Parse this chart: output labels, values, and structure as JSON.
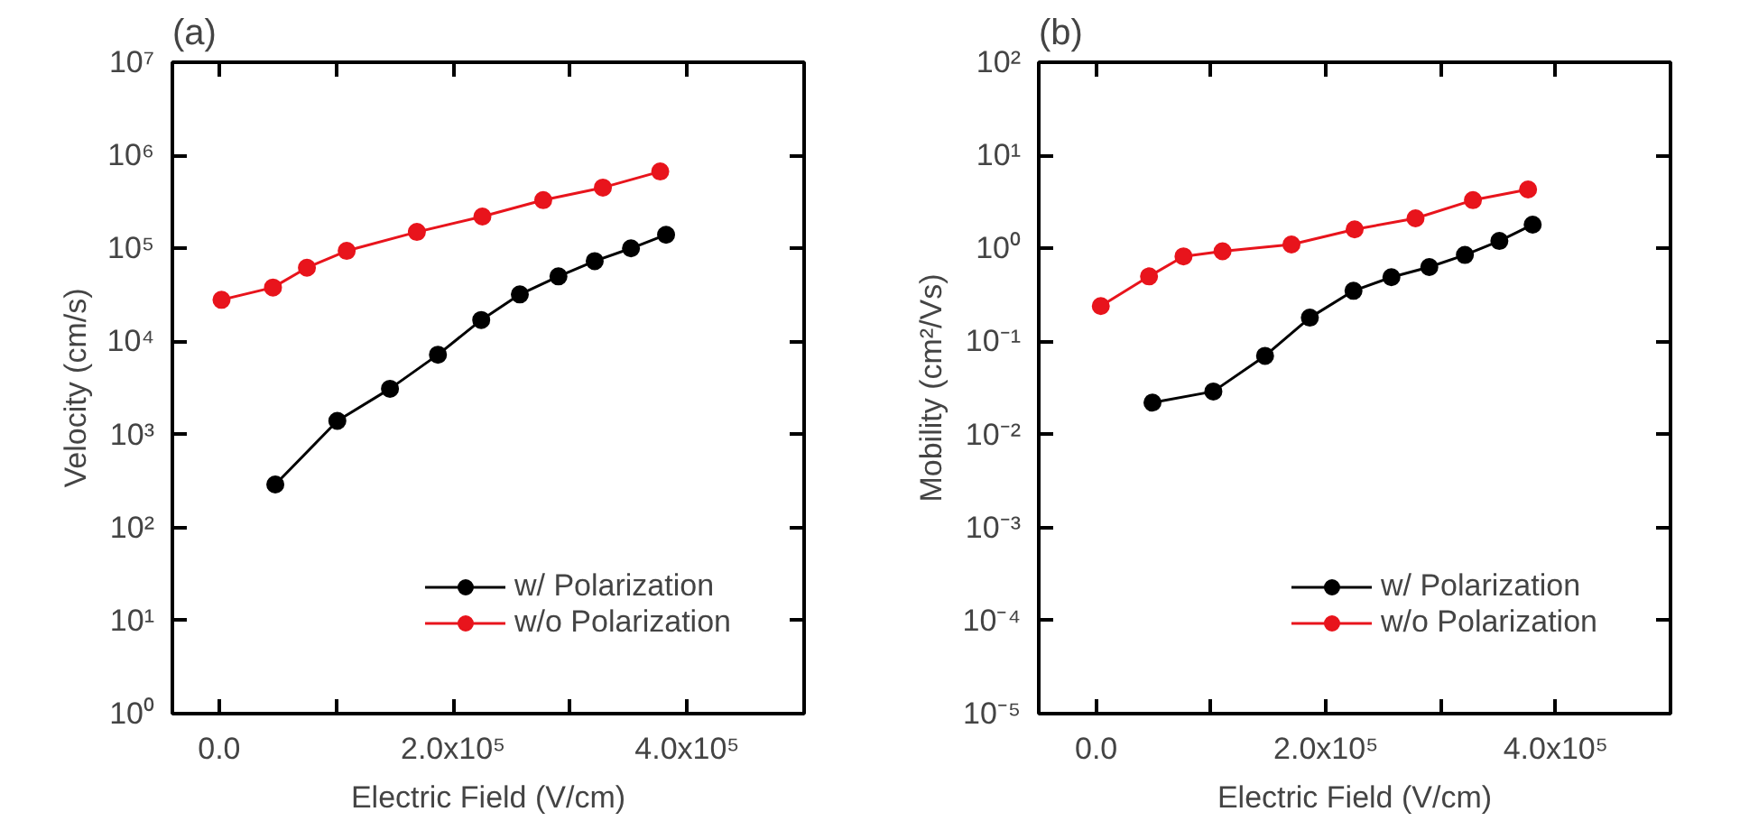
{
  "chart_data": [
    {
      "type": "line",
      "title": "(a)",
      "xlabel": "Electric Field (V/cm)",
      "ylabel": "Velocity (cm/s)",
      "log": "y",
      "marker": "circle",
      "legend": "bottom right",
      "xlim": [
        -40000,
        500000
      ],
      "xticks": [
        {
          "value": 0,
          "label": "0.0"
        },
        {
          "value": 100000,
          "label": null
        },
        {
          "value": 200000,
          "label": "2.0x10⁵"
        },
        {
          "value": 300000,
          "label": null
        },
        {
          "value": 400000,
          "label": "4.0x10⁵"
        }
      ],
      "ylim": [
        1,
        10000000
      ],
      "yticks": [
        {
          "value": 1,
          "label": "10⁰"
        },
        {
          "value": 10,
          "label": "10¹"
        },
        {
          "value": 100,
          "label": "10²"
        },
        {
          "value": 1000,
          "label": "10³"
        },
        {
          "value": 10000,
          "label": "10⁴"
        },
        {
          "value": 100000,
          "label": "10⁵"
        },
        {
          "value": 1000000,
          "label": "10⁶"
        },
        {
          "value": 10000000,
          "label": "10⁷"
        }
      ],
      "series": [
        {
          "name": "w/ Polarization",
          "color": "#000000",
          "x": [
            48000,
            101000,
            146000,
            187000,
            224000,
            257000,
            290000,
            321000,
            352000,
            382000
          ],
          "values": [
            290,
            1400,
            3100,
            7200,
            17000,
            32000,
            50000,
            73000,
            100000,
            140000
          ]
        },
        {
          "name": "w/o Polarization",
          "color": "#e8141c",
          "x": [
            2000,
            46000,
            75000,
            109000,
            169000,
            225000,
            277000,
            328000,
            377000
          ],
          "values": [
            28000,
            38000,
            62000,
            94000,
            150000,
            220000,
            330000,
            450000,
            670000
          ]
        }
      ]
    },
    {
      "type": "line",
      "title": "(b)",
      "xlabel": "Electric Field (V/cm)",
      "ylabel": "Mobility (cm²/Vs)",
      "log": "y",
      "marker": "circle",
      "legend": "bottom right",
      "xlim": [
        -50000,
        500000
      ],
      "xticks": [
        {
          "value": 0,
          "label": "0.0"
        },
        {
          "value": 100000,
          "label": null
        },
        {
          "value": 200000,
          "label": "2.0x10⁵"
        },
        {
          "value": 300000,
          "label": null
        },
        {
          "value": 400000,
          "label": "4.0x10⁵"
        }
      ],
      "ylim": [
        1e-05,
        100
      ],
      "yticks": [
        {
          "value": 1e-05,
          "label": "10⁻⁵"
        },
        {
          "value": 0.0001,
          "label": "10⁻⁴"
        },
        {
          "value": 0.001,
          "label": "10⁻³"
        },
        {
          "value": 0.01,
          "label": "10⁻²"
        },
        {
          "value": 0.1,
          "label": "10⁻¹"
        },
        {
          "value": 1,
          "label": "10⁰"
        },
        {
          "value": 10,
          "label": "10¹"
        },
        {
          "value": 100,
          "label": "10²"
        }
      ],
      "series": [
        {
          "name": "w/ Polarization",
          "color": "#000000",
          "x": [
            49000,
            102000,
            147000,
            186000,
            224000,
            257000,
            290000,
            321000,
            351000,
            380000
          ],
          "values": [
            0.022,
            0.029,
            0.07,
            0.18,
            0.35,
            0.49,
            0.63,
            0.85,
            1.2,
            1.8
          ]
        },
        {
          "name": "w/o Polarization",
          "color": "#e8141c",
          "x": [
            4000,
            46000,
            76000,
            110000,
            170000,
            225000,
            278000,
            328000,
            376000
          ],
          "values": [
            0.24,
            0.5,
            0.82,
            0.93,
            1.1,
            1.6,
            2.1,
            3.3,
            4.3
          ]
        }
      ]
    }
  ]
}
